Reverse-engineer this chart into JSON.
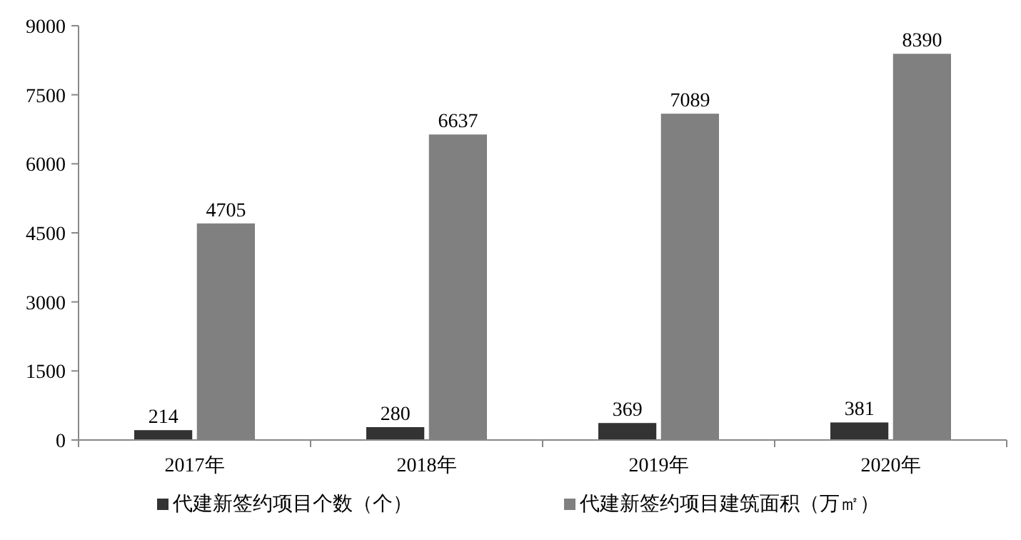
{
  "chart_data": {
    "type": "bar",
    "categories": [
      "2017年",
      "2018年",
      "2019年",
      "2020年"
    ],
    "series": [
      {
        "name": "代建新签约项目个数（个）",
        "color": "#333333",
        "values": [
          214,
          280,
          369,
          381
        ]
      },
      {
        "name": "代建新签约项目建筑面积（万㎡）",
        "color": "#808080",
        "values": [
          4705,
          6637,
          7089,
          8390
        ]
      }
    ],
    "ylim": [
      0,
      9000
    ],
    "yticks": [
      0,
      1500,
      3000,
      4500,
      6000,
      7500,
      9000
    ],
    "data_labels": true,
    "legend": "bottom",
    "grid": false
  }
}
